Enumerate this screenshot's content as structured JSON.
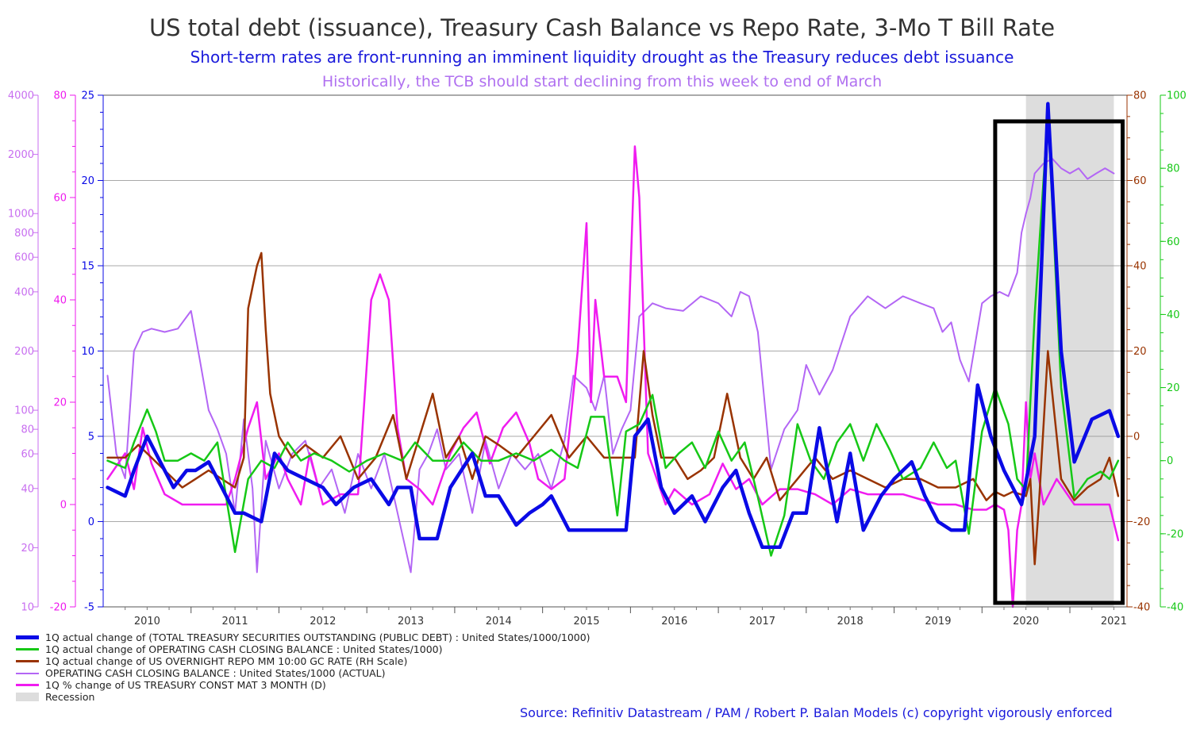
{
  "title": "US total debt (issuance), Treasury Cash Balance vs Repo Rate, 3-Mo T Bill Rate",
  "subtitle": "Short-term rates are front-running an imminent liquidity drought as the Treasury reduces debt issuance",
  "subtitle2": "Historically, the TCB should start declining from this week to end of March",
  "source": "Source: Refinitiv Datastream / PAM /  Robert P. Balan Models (c) copyright vigorously enforced",
  "colors": {
    "debt": "#0a0ae6",
    "cash_change": "#16c816",
    "repo": "#993300",
    "cash_balance": "#b366f5",
    "tbill": "#f01cf0",
    "recession": "#dddddd",
    "box": "#000000"
  },
  "chart_data": {
    "type": "line",
    "x_ticks": [
      "2010",
      "2011",
      "2012",
      "2013",
      "2014",
      "2015",
      "2016",
      "2017",
      "2018",
      "2019",
      "2020",
      "2021"
    ],
    "xlim": [
      2009.5,
      2021.15
    ],
    "axes": {
      "cash_balance_log": {
        "ticks": [
          "10",
          "20",
          "40",
          "60",
          "80",
          "100",
          "200",
          "400",
          "600",
          "800",
          "1000",
          "2000",
          "4000"
        ],
        "ylim": [
          10,
          4000
        ],
        "scale": "log"
      },
      "tbill_pct": {
        "ticks": [
          "-20",
          "0",
          "20",
          "40",
          "60",
          "80"
        ],
        "ylim": [
          -20,
          80
        ]
      },
      "debt": {
        "ticks": [
          "-5",
          "0",
          "5",
          "10",
          "15",
          "20",
          "25"
        ],
        "ylim": [
          -5,
          25
        ]
      },
      "repo_rh": {
        "ticks": [
          "-40",
          "-20",
          "0",
          "20",
          "40",
          "60",
          "80"
        ],
        "ylim": [
          -40,
          80
        ]
      },
      "cash_change_rh": {
        "ticks": [
          "-40",
          "-20",
          "0",
          "20",
          "40",
          "60",
          "80",
          "100"
        ],
        "ylim": [
          -40,
          100
        ]
      }
    },
    "recession": [
      2020.0,
      2021.0
    ],
    "highlight_box": [
      2019.65,
      2021.1
    ],
    "series": [
      {
        "key": "debt",
        "name": "1Q actual change of (TOTAL TREASURY SECURITIES OUTSTANDING (PUBLIC DEBT) : United States/1000/1000)",
        "axis": "debt",
        "x": [
          2009.55,
          2009.75,
          2009.85,
          2010.0,
          2010.15,
          2010.3,
          2010.45,
          2010.55,
          2010.7,
          2010.85,
          2011.0,
          2011.1,
          2011.3,
          2011.45,
          2011.6,
          2011.8,
          2012.0,
          2012.15,
          2012.35,
          2012.55,
          2012.75,
          2012.85,
          2013.0,
          2013.1,
          2013.3,
          2013.45,
          2013.7,
          2013.85,
          2014.0,
          2014.2,
          2014.35,
          2014.5,
          2014.6,
          2014.8,
          2015.0,
          2015.3,
          2015.45,
          2015.55,
          2015.7,
          2015.85,
          2016.0,
          2016.2,
          2016.35,
          2016.55,
          2016.7,
          2016.85,
          2017.0,
          2017.2,
          2017.35,
          2017.5,
          2017.65,
          2017.85,
          2018.0,
          2018.15,
          2018.35,
          2018.5,
          2018.7,
          2018.85,
          2019.0,
          2019.15,
          2019.3,
          2019.45,
          2019.6,
          2019.75,
          2019.95,
          2020.1,
          2020.25,
          2020.4,
          2020.55,
          2020.75,
          2020.95,
          2021.05
        ],
        "values": [
          2.0,
          1.5,
          3.0,
          5.0,
          3.5,
          2.0,
          3.0,
          3.0,
          3.5,
          2.0,
          0.5,
          0.5,
          0.0,
          4.0,
          3.0,
          2.5,
          2.0,
          1.0,
          2.0,
          2.5,
          1.0,
          2.0,
          2.0,
          -1.0,
          -1.0,
          2.0,
          4.0,
          1.5,
          1.5,
          -0.2,
          0.5,
          1.0,
          1.5,
          -0.5,
          -0.5,
          -0.5,
          -0.5,
          5.0,
          6.0,
          2.0,
          0.5,
          1.5,
          0.0,
          2.0,
          3.0,
          0.5,
          -1.5,
          -1.5,
          0.5,
          0.5,
          5.5,
          0.0,
          4.0,
          -0.5,
          1.5,
          2.5,
          3.5,
          1.5,
          0.0,
          -0.5,
          -0.5,
          8.0,
          5.0,
          3.0,
          1.0,
          5.0,
          24.5,
          10.0,
          3.5,
          6.0,
          6.5,
          5.0
        ]
      },
      {
        "key": "cash_change",
        "name": "1Q actual change of OPERATING CASH CLOSING BALANCE : United States/1000)",
        "axis": "cash_change_rh",
        "x": [
          2009.55,
          2009.75,
          2009.85,
          2010.0,
          2010.1,
          2010.2,
          2010.35,
          2010.5,
          2010.65,
          2010.8,
          2011.0,
          2011.15,
          2011.3,
          2011.45,
          2011.6,
          2011.75,
          2011.9,
          2012.1,
          2012.3,
          2012.5,
          2012.7,
          2012.9,
          2013.05,
          2013.25,
          2013.45,
          2013.6,
          2013.8,
          2014.0,
          2014.2,
          2014.4,
          2014.6,
          2014.75,
          2014.9,
          2015.05,
          2015.2,
          2015.35,
          2015.45,
          2015.6,
          2015.75,
          2015.9,
          2016.05,
          2016.2,
          2016.35,
          2016.5,
          2016.65,
          2016.8,
          2016.95,
          2017.1,
          2017.25,
          2017.4,
          2017.55,
          2017.7,
          2017.85,
          2018.0,
          2018.15,
          2018.3,
          2018.45,
          2018.6,
          2018.8,
          2018.95,
          2019.1,
          2019.2,
          2019.35,
          2019.5,
          2019.65,
          2019.8,
          2019.9,
          2020.0,
          2020.1,
          2020.25,
          2020.3,
          2020.4,
          2020.55,
          2020.7,
          2020.85,
          2020.95,
          2021.05
        ],
        "values": [
          0,
          -2,
          5,
          14,
          8,
          0,
          0,
          2,
          0,
          5,
          -25,
          -5,
          0,
          -2,
          5,
          0,
          2,
          0,
          -3,
          0,
          2,
          0,
          5,
          0,
          0,
          5,
          0,
          0,
          2,
          0,
          3,
          0,
          -2,
          12,
          12,
          -15,
          8,
          10,
          18,
          -2,
          2,
          5,
          -2,
          8,
          0,
          5,
          -10,
          -26,
          -15,
          10,
          0,
          -5,
          5,
          10,
          0,
          10,
          3,
          -5,
          -2,
          5,
          -2,
          0,
          -20,
          8,
          20,
          10,
          -5,
          -8,
          40,
          95,
          70,
          20,
          -10,
          -5,
          -3,
          -5,
          0
        ]
      },
      {
        "key": "repo",
        "name": "1Q actual change of US OVERNIGHT REPO MM 10:00 GC RATE (RH Scale)",
        "axis": "repo_rh",
        "x": [
          2009.55,
          2009.75,
          2009.9,
          2010.05,
          2010.2,
          2010.4,
          2010.55,
          2010.7,
          2010.85,
          2011.0,
          2011.1,
          2011.15,
          2011.2,
          2011.25,
          2011.3,
          2011.35,
          2011.4,
          2011.5,
          2011.65,
          2011.8,
          2012.0,
          2012.2,
          2012.4,
          2012.6,
          2012.8,
          2012.95,
          2013.1,
          2013.25,
          2013.4,
          2013.55,
          2013.7,
          2013.85,
          2014.0,
          2014.2,
          2014.4,
          2014.6,
          2014.8,
          2015.0,
          2015.2,
          2015.4,
          2015.55,
          2015.65,
          2015.75,
          2015.85,
          2016.0,
          2016.15,
          2016.3,
          2016.45,
          2016.6,
          2016.75,
          2016.9,
          2017.05,
          2017.2,
          2017.4,
          2017.6,
          2017.8,
          2018.0,
          2018.2,
          2018.4,
          2018.6,
          2018.8,
          2019.0,
          2019.2,
          2019.4,
          2019.55,
          2019.65,
          2019.75,
          2019.85,
          2020.0,
          2020.05,
          2020.1,
          2020.15,
          2020.25,
          2020.4,
          2020.55,
          2020.7,
          2020.85,
          2020.95,
          2021.05
        ],
        "values": [
          -5,
          -5,
          -2,
          -5,
          -8,
          -12,
          -10,
          -8,
          -10,
          -12,
          -5,
          30,
          35,
          40,
          43,
          25,
          10,
          0,
          -5,
          -2,
          -5,
          0,
          -10,
          -5,
          5,
          -10,
          0,
          10,
          -5,
          0,
          -10,
          0,
          -2,
          -5,
          0,
          5,
          -5,
          0,
          -5,
          -5,
          -5,
          20,
          5,
          -5,
          -5,
          -10,
          -8,
          -5,
          10,
          -5,
          -10,
          -5,
          -15,
          -10,
          -5,
          -10,
          -8,
          -10,
          -12,
          -10,
          -10,
          -12,
          -12,
          -10,
          -15,
          -13,
          -14,
          -13,
          -14,
          -10,
          -30,
          -15,
          20,
          -10,
          -15,
          -12,
          -10,
          -5,
          -14
        ]
      },
      {
        "key": "cash_balance",
        "name": "OPERATING CASH CLOSING BALANCE : United States/1000 (ACTUAL)",
        "axis": "cash_balance_log",
        "x": [
          2009.55,
          2009.65,
          2009.75,
          2009.85,
          2009.95,
          2010.05,
          2010.2,
          2010.35,
          2010.5,
          2010.6,
          2010.7,
          2010.8,
          2010.9,
          2011.0,
          2011.1,
          2011.2,
          2011.25,
          2011.35,
          2011.5,
          2011.65,
          2011.8,
          2011.95,
          2012.1,
          2012.25,
          2012.4,
          2012.55,
          2012.7,
          2012.85,
          2013.0,
          2013.1,
          2013.2,
          2013.3,
          2013.4,
          2013.55,
          2013.7,
          2013.85,
          2014.0,
          2014.15,
          2014.3,
          2014.45,
          2014.6,
          2014.75,
          2014.85,
          2015.0,
          2015.1,
          2015.2,
          2015.3,
          2015.4,
          2015.5,
          2015.6,
          2015.75,
          2015.9,
          2016.1,
          2016.3,
          2016.5,
          2016.65,
          2016.75,
          2016.85,
          2016.95,
          2017.1,
          2017.25,
          2017.4,
          2017.5,
          2017.65,
          2017.8,
          2018.0,
          2018.2,
          2018.4,
          2018.6,
          2018.8,
          2018.95,
          2019.05,
          2019.15,
          2019.25,
          2019.35,
          2019.5,
          2019.6,
          2019.7,
          2019.8,
          2019.9,
          2019.95,
          2020.0,
          2020.05,
          2020.1,
          2020.2,
          2020.3,
          2020.4,
          2020.5,
          2020.6,
          2020.7,
          2020.8,
          2020.9,
          2021.0
        ],
        "values": [
          150,
          60,
          45,
          200,
          250,
          260,
          250,
          260,
          320,
          180,
          100,
          80,
          60,
          30,
          90,
          40,
          15,
          70,
          40,
          60,
          70,
          40,
          50,
          30,
          60,
          40,
          60,
          30,
          15,
          50,
          60,
          80,
          50,
          60,
          30,
          70,
          40,
          60,
          50,
          60,
          40,
          70,
          150,
          130,
          100,
          150,
          60,
          80,
          100,
          300,
          350,
          330,
          320,
          380,
          350,
          300,
          400,
          380,
          250,
          50,
          80,
          100,
          170,
          120,
          160,
          300,
          380,
          330,
          380,
          350,
          330,
          250,
          280,
          180,
          140,
          350,
          380,
          400,
          380,
          500,
          800,
          1000,
          1200,
          1600,
          1800,
          1900,
          1700,
          1600,
          1700,
          1500,
          1600,
          1700,
          1600
        ]
      },
      {
        "key": "tbill",
        "name": "1Q % change of US TREASURY CONST MAT 3 MONTH (D)",
        "axis": "tbill_pct",
        "x": [
          2009.55,
          2009.75,
          2009.85,
          2009.95,
          2010.05,
          2010.2,
          2010.4,
          2010.55,
          2010.75,
          2010.9,
          2011.0,
          2011.15,
          2011.25,
          2011.35,
          2011.5,
          2011.6,
          2011.75,
          2011.85,
          2012.0,
          2012.2,
          2012.4,
          2012.55,
          2012.65,
          2012.75,
          2012.85,
          2012.95,
          2013.1,
          2013.25,
          2013.45,
          2013.6,
          2013.75,
          2013.9,
          2014.05,
          2014.2,
          2014.35,
          2014.45,
          2014.6,
          2014.75,
          2014.9,
          2015.0,
          2015.05,
          2015.1,
          2015.2,
          2015.3,
          2015.35,
          2015.45,
          2015.55,
          2015.6,
          2015.7,
          2015.8,
          2015.9,
          2016.0,
          2016.2,
          2016.4,
          2016.55,
          2016.7,
          2016.85,
          2017.0,
          2017.2,
          2017.4,
          2017.6,
          2017.8,
          2018.0,
          2018.2,
          2018.4,
          2018.6,
          2018.8,
          2019.0,
          2019.2,
          2019.4,
          2019.55,
          2019.65,
          2019.75,
          2019.8,
          2019.85,
          2019.9,
          2019.95,
          2020.0,
          2020.05,
          2020.1,
          2020.2,
          2020.35,
          2020.55,
          2020.75,
          2020.95,
          2021.05
        ],
        "values": [
          5,
          10,
          3,
          15,
          8,
          2,
          0,
          0,
          0,
          0,
          5,
          15,
          20,
          5,
          10,
          5,
          0,
          10,
          0,
          2,
          2,
          40,
          45,
          40,
          15,
          5,
          3,
          0,
          10,
          15,
          18,
          8,
          15,
          18,
          12,
          5,
          3,
          5,
          30,
          55,
          20,
          40,
          25,
          25,
          25,
          20,
          70,
          60,
          10,
          5,
          0,
          3,
          0,
          2,
          8,
          3,
          5,
          0,
          3,
          3,
          2,
          0,
          3,
          2,
          2,
          2,
          1,
          0,
          0,
          -1,
          -1,
          0,
          -1,
          -5,
          -20,
          -5,
          0,
          20,
          5,
          10,
          0,
          5,
          0,
          0,
          0,
          -7
        ]
      }
    ]
  },
  "legend": {
    "items": [
      "1Q actual change of (TOTAL TREASURY SECURITIES OUTSTANDING (PUBLIC DEBT) : United States/1000/1000)",
      "1Q actual change of OPERATING CASH CLOSING BALANCE : United States/1000)",
      "1Q actual change of US OVERNIGHT REPO MM 10:00 GC RATE (RH Scale)",
      "OPERATING CASH CLOSING BALANCE : United States/1000 (ACTUAL)",
      "1Q % change of US TREASURY CONST MAT 3 MONTH (D)"
    ],
    "recession_label": "Recession"
  }
}
